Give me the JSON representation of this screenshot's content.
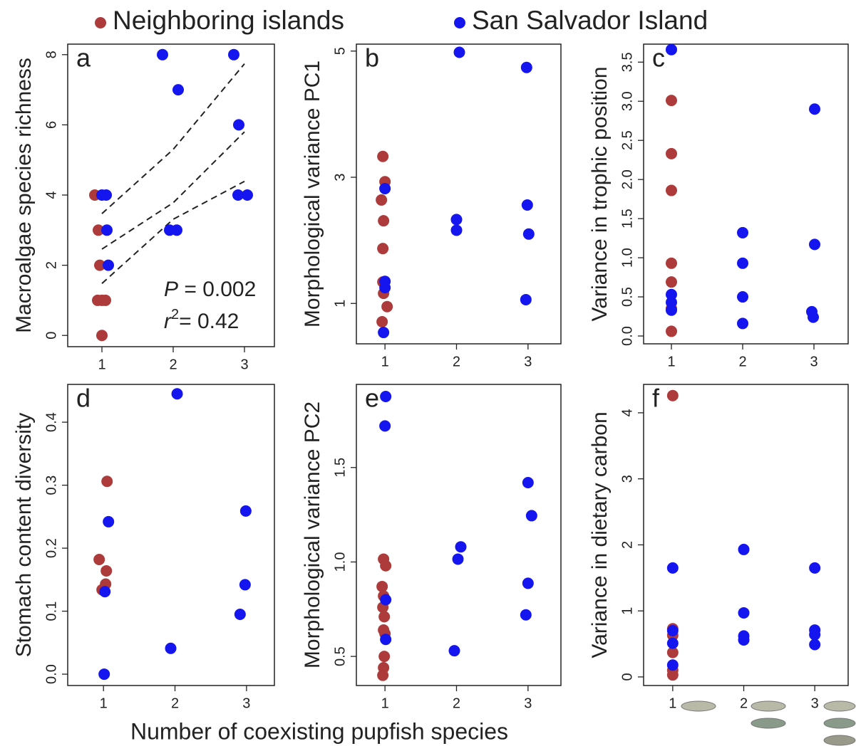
{
  "legend": {
    "series": [
      {
        "name": "Neighboring islands",
        "color": "#ad3b3b"
      },
      {
        "name": "San Salvador Island",
        "color": "#1515f0"
      }
    ]
  },
  "xlabel": "Number of coexisting pupfish species",
  "chart_data": [
    {
      "type": "scatter",
      "label": "a",
      "ylabel": "Macroalgae species richness",
      "xlim": [
        0.52,
        3.42
      ],
      "ylim": [
        -0.32,
        8.3
      ],
      "xticks": [
        1,
        2,
        3
      ],
      "yticks": [
        0,
        2,
        4,
        6,
        8
      ],
      "series": [
        {
          "name": "Neighboring islands",
          "color": "#ad3b3b",
          "x": [
            0.9,
            0.95,
            0.97,
            0.94,
            1.0,
            1.05,
            1.0
          ],
          "values": [
            4,
            3,
            2,
            1,
            1,
            1,
            0
          ]
        },
        {
          "name": "San Salvador Island",
          "color": "#1515f0",
          "x": [
            1.0,
            1.06,
            1.07,
            1.09,
            1.85,
            2.07,
            1.95,
            2.05,
            2.85,
            2.92,
            2.91,
            3.04
          ],
          "values": [
            4,
            4,
            3,
            2,
            8,
            7,
            3,
            3,
            8,
            6,
            4,
            4
          ]
        }
      ],
      "lines": [
        {
          "x": [
            1,
            2,
            3
          ],
          "values": [
            3.47,
            5.3,
            7.74
          ]
        },
        {
          "x": [
            1,
            2,
            3
          ],
          "values": [
            2.46,
            3.78,
            5.8
          ]
        },
        {
          "x": [
            1,
            2,
            3
          ],
          "values": [
            1.48,
            3.31,
            4.39
          ]
        }
      ],
      "annotations": [
        {
          "italic": "P",
          "text": " = 0.002"
        },
        {
          "italic": "r",
          "sup": "2",
          "text": "= 0.42"
        }
      ]
    },
    {
      "type": "scatter",
      "label": "b",
      "ylabel": "Morphological variance PC1",
      "xlim": [
        0.6,
        3.46
      ],
      "ylim": [
        0.36,
        5.11
      ],
      "xticks": [
        1,
        2,
        3
      ],
      "yticks": [
        1,
        3,
        5
      ],
      "series": [
        {
          "name": "Neighboring islands",
          "color": "#ad3b3b",
          "x": [
            0.97,
            1.0,
            0.95,
            0.98,
            0.97,
            0.97,
            0.98,
            1.03,
            0.96
          ],
          "values": [
            3.33,
            2.93,
            2.64,
            2.31,
            1.87,
            1.34,
            1.16,
            0.95,
            0.71
          ]
        },
        {
          "name": "San Salvador Island",
          "color": "#1515f0",
          "x": [
            1.0,
            1.0,
            1.0,
            0.98,
            2.04,
            2.0,
            2.0,
            2.98,
            2.99,
            3.01,
            2.97
          ],
          "values": [
            2.82,
            1.35,
            1.25,
            0.54,
            4.98,
            2.33,
            2.16,
            4.74,
            2.56,
            2.1,
            1.06
          ]
        }
      ]
    },
    {
      "type": "scatter",
      "label": "c",
      "ylabel": "Variance in trophic position",
      "xlim": [
        0.61,
        3.48
      ],
      "ylim": [
        -0.1,
        3.73
      ],
      "xticks": [
        1,
        2,
        3
      ],
      "yticks": [
        {
          "value": 0,
          "label": "0.0"
        },
        0.5,
        {
          "value": 1,
          "label": "1.0"
        },
        1.5,
        {
          "value": 2,
          "label": "2.0"
        },
        2.5,
        {
          "value": 3,
          "label": "3.0"
        },
        3.5
      ],
      "series": [
        {
          "name": "Neighboring islands",
          "color": "#ad3b3b",
          "x": [
            1,
            1,
            1,
            1,
            1,
            1,
            1
          ],
          "values": [
            3.01,
            2.33,
            1.86,
            0.93,
            0.69,
            0.35,
            0.06
          ]
        },
        {
          "name": "San Salvador Island",
          "color": "#1515f0",
          "x": [
            1,
            1,
            1,
            1,
            2,
            2,
            2,
            2,
            3.01,
            3.01,
            2.97,
            2.99
          ],
          "values": [
            3.66,
            0.53,
            0.43,
            0.33,
            1.32,
            0.93,
            0.5,
            0.16,
            2.9,
            1.17,
            0.31,
            0.24
          ]
        }
      ]
    },
    {
      "type": "scatter",
      "label": "d",
      "ylabel": "Stomach content diversity",
      "xlim": [
        0.5,
        3.39
      ],
      "ylim": [
        -0.018,
        0.46
      ],
      "xticks": [
        1,
        2,
        3
      ],
      "yticks": [
        {
          "value": 0,
          "label": "0.0"
        },
        0.1,
        0.2,
        0.3,
        0.4
      ],
      "series": [
        {
          "name": "Neighboring islands",
          "color": "#ad3b3b",
          "x": [
            1.05,
            0.94,
            1.04,
            1.03,
            0.98
          ],
          "values": [
            0.306,
            0.182,
            0.164,
            0.143,
            0.134
          ]
        },
        {
          "name": "San Salvador Island",
          "color": "#1515f0",
          "x": [
            1.07,
            1.02,
            1.01,
            2.03,
            1.94,
            2.99,
            2.98,
            2.91
          ],
          "values": [
            0.242,
            0.131,
            0.0,
            0.445,
            0.041,
            0.259,
            0.142,
            0.095
          ]
        }
      ]
    },
    {
      "type": "scatter",
      "label": "e",
      "ylabel": "Morphological variance PC2",
      "xlim": [
        0.6,
        3.46
      ],
      "ylim": [
        0.346,
        1.94
      ],
      "xticks": [
        1,
        2,
        3
      ],
      "yticks": [
        0.5,
        {
          "value": 1,
          "label": "1.0"
        },
        1.5
      ],
      "series": [
        {
          "name": "Neighboring islands",
          "color": "#ad3b3b",
          "x": [
            0.98,
            1.01,
            0.96,
            0.98,
            0.97,
            0.99,
            0.98,
            1.0,
            0.99,
            0.98,
            0.97
          ],
          "values": [
            1.015,
            0.98,
            0.87,
            0.82,
            0.76,
            0.71,
            0.64,
            0.62,
            0.5,
            0.44,
            0.4
          ]
        },
        {
          "name": "San Salvador Island",
          "color": "#1515f0",
          "x": [
            1.01,
            1.0,
            1.01,
            1.01,
            1.97,
            2.06,
            2.02,
            3.0,
            3.05,
            3.0,
            2.97
          ],
          "values": [
            1.876,
            1.72,
            0.8,
            0.59,
            0.53,
            1.08,
            1.015,
            1.42,
            1.245,
            0.887,
            0.72
          ]
        }
      ]
    },
    {
      "type": "scatter",
      "label": "f",
      "ylabel": "Variance in dietary carbon",
      "xlim": [
        0.59,
        3.47
      ],
      "ylim": [
        -0.13,
        4.43
      ],
      "xticks": [
        1,
        2,
        3
      ],
      "yticks": [
        0,
        1,
        2,
        3,
        4
      ],
      "series": [
        {
          "name": "Neighboring islands",
          "color": "#ad3b3b",
          "x": [
            1,
            1,
            1,
            1,
            1,
            1
          ],
          "values": [
            4.26,
            0.73,
            0.63,
            0.37,
            0.1,
            0.03
          ]
        },
        {
          "name": "San Salvador Island",
          "color": "#1515f0",
          "x": [
            1,
            1,
            1,
            1,
            2,
            2,
            2,
            2,
            3,
            3,
            3,
            3
          ],
          "values": [
            1.65,
            0.7,
            0.51,
            0.18,
            1.93,
            0.97,
            0.62,
            0.56,
            1.65,
            0.71,
            0.64,
            0.49
          ]
        }
      ]
    }
  ]
}
